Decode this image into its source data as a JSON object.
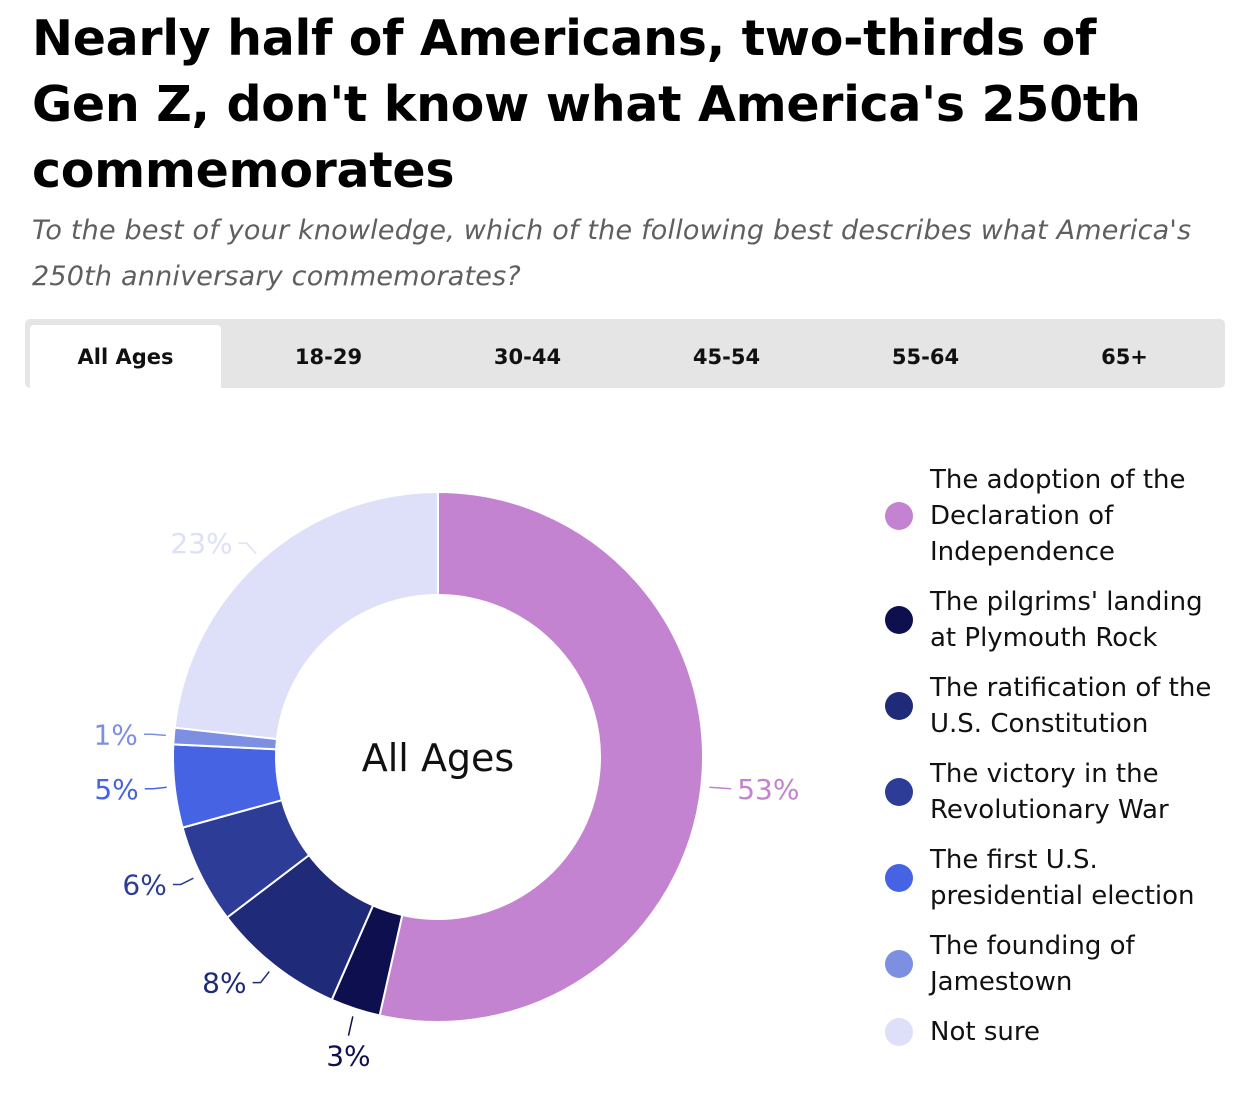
{
  "header": {
    "title": "Nearly half of Americans, two-thirds of Gen Z, don't know what America's 250th commemorates",
    "subtitle": "To the best of your knowledge, which of the following best describes what America's 250th anniversary commemorates?"
  },
  "tabs": [
    {
      "label": "All Ages",
      "active": true
    },
    {
      "label": "18-29",
      "active": false
    },
    {
      "label": "30-44",
      "active": false
    },
    {
      "label": "45-54",
      "active": false
    },
    {
      "label": "55-64",
      "active": false
    },
    {
      "label": "65+",
      "active": false
    }
  ],
  "chart_data": {
    "type": "pie",
    "variant": "donut",
    "center_label": "All Ages",
    "unit": "%",
    "legend_position": "right",
    "slices": [
      {
        "label": "The adoption of the Declaration of Independence",
        "value": 53,
        "display": "53%",
        "color": "#c383d0"
      },
      {
        "label": "The pilgrims' landing at Plymouth Rock",
        "value": 3,
        "display": "3%",
        "color": "#0e0f4f"
      },
      {
        "label": "The ratification of the U.S. Constitution",
        "value": 8,
        "display": "8%",
        "color": "#1f2b78"
      },
      {
        "label": "The victory in the Revolutionary War",
        "value": 6,
        "display": "6%",
        "color": "#2d3d97"
      },
      {
        "label": "The first U.S. presidential election",
        "value": 5,
        "display": "5%",
        "color": "#4563e3"
      },
      {
        "label": "The founding of Jamestown",
        "value": 1,
        "display": "1%",
        "color": "#7c8fe2"
      },
      {
        "label": "Not sure",
        "value": 23,
        "display": "23%",
        "color": "#dde0f8"
      }
    ],
    "label_colors": [
      "#c383d0",
      "#0e0f4f",
      "#1f2b78",
      "#2d3d97",
      "#4563e3",
      "#7c8fe2",
      "#dde0f8"
    ]
  },
  "legend": {
    "items": [
      {
        "lines": [
          "The adoption of the",
          "Declaration of",
          "Independence"
        ],
        "color": "#c383d0"
      },
      {
        "lines": [
          "The pilgrims' landing",
          "at Plymouth Rock"
        ],
        "color": "#0e0f4f"
      },
      {
        "lines": [
          "The ratification of the",
          "U.S. Constitution"
        ],
        "color": "#1f2b78"
      },
      {
        "lines": [
          "The victory in the",
          "Revolutionary War"
        ],
        "color": "#2d3d97"
      },
      {
        "lines": [
          "The first U.S.",
          "presidential election"
        ],
        "color": "#4563e3"
      },
      {
        "lines": [
          "The founding of",
          "Jamestown"
        ],
        "color": "#7c8fe2"
      },
      {
        "lines": [
          "Not sure"
        ],
        "color": "#dde0f8"
      }
    ]
  }
}
